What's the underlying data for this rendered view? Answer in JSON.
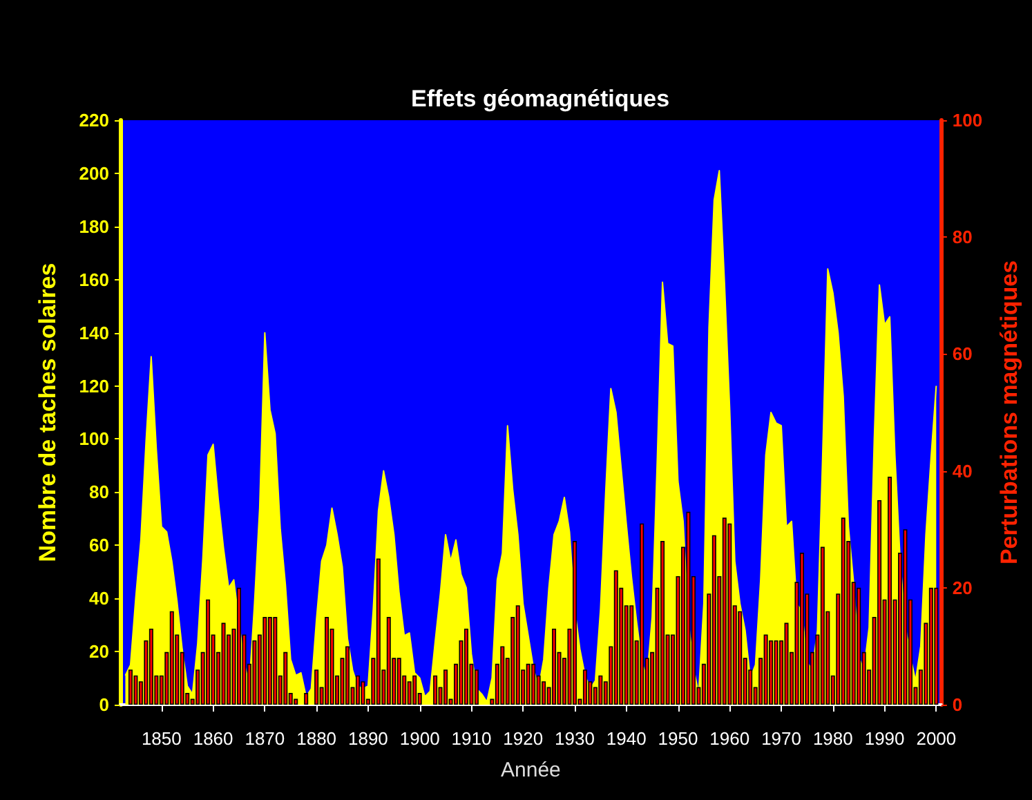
{
  "chart_data": {
    "type": "area",
    "title": "Effets géomagnétiques",
    "xlabel": "Année",
    "ylabel": "Nombre de taches solaires",
    "y2label": "Perturbations magnétiques",
    "xlim": [
      1842,
      2001
    ],
    "xticks": [
      1850,
      1860,
      1870,
      1880,
      1890,
      1900,
      1910,
      1920,
      1930,
      1940,
      1950,
      1960,
      1970,
      1980,
      1990,
      2000
    ],
    "ylim": [
      0,
      220
    ],
    "yticks": [
      0,
      20,
      40,
      60,
      80,
      100,
      120,
      140,
      160,
      180,
      200,
      220
    ],
    "y2lim": [
      0,
      100
    ],
    "y2ticks": [
      0,
      20,
      40,
      60,
      80,
      100
    ],
    "series": [
      {
        "color": "#ffff00",
        "x": [
          1843,
          1844,
          1845,
          1846,
          1847,
          1848,
          1849,
          1850,
          1851,
          1852,
          1853,
          1854,
          1855,
          1856,
          1857,
          1858,
          1859,
          1860,
          1861,
          1862,
          1863,
          1864,
          1865,
          1866,
          1867,
          1868,
          1869,
          1870,
          1871,
          1872,
          1873,
          1874,
          1875,
          1876,
          1877,
          1878,
          1879,
          1880,
          1881,
          1882,
          1883,
          1884,
          1885,
          1886,
          1887,
          1888,
          1889,
          1890,
          1891,
          1892,
          1893,
          1894,
          1895,
          1896,
          1897,
          1898,
          1899,
          1900,
          1901,
          1902,
          1903,
          1904,
          1905,
          1906,
          1907,
          1908,
          1909,
          1910,
          1911,
          1912,
          1913,
          1914,
          1915,
          1916,
          1917,
          1918,
          1919,
          1920,
          1921,
          1922,
          1923,
          1924,
          1925,
          1926,
          1927,
          1928,
          1929,
          1930,
          1931,
          1932,
          1933,
          1934,
          1935,
          1936,
          1937,
          1938,
          1939,
          1940,
          1941,
          1942,
          1943,
          1944,
          1945,
          1946,
          1947,
          1948,
          1949,
          1950,
          1951,
          1952,
          1953,
          1954,
          1955,
          1956,
          1957,
          1958,
          1959,
          1960,
          1961,
          1962,
          1963,
          1964,
          1965,
          1966,
          1967,
          1968,
          1969,
          1970,
          1971,
          1972,
          1973,
          1974,
          1975,
          1976,
          1977,
          1978,
          1979,
          1980,
          1981,
          1982,
          1983,
          1984,
          1985,
          1986,
          1987,
          1988,
          1989,
          1990,
          1991,
          1992,
          1993,
          1994,
          1995,
          1996,
          1997,
          1998,
          1999,
          2000
        ],
        "values": [
          11,
          15,
          40,
          62,
          99,
          131,
          96,
          67,
          65,
          54,
          39,
          21,
          7,
          4,
          23,
          55,
          94,
          98,
          77,
          59,
          44,
          47,
          31,
          16,
          7,
          38,
          74,
          140,
          111,
          102,
          66,
          45,
          17,
          11,
          12,
          3,
          6,
          32,
          54,
          60,
          74,
          64,
          52,
          25,
          13,
          7,
          6,
          7,
          36,
          73,
          88,
          78,
          64,
          42,
          26,
          27,
          12,
          10,
          3,
          5,
          24,
          42,
          64,
          54,
          62,
          49,
          44,
          19,
          6,
          4,
          1,
          10,
          47,
          57,
          105,
          81,
          64,
          38,
          26,
          14,
          6,
          17,
          44,
          64,
          69,
          78,
          65,
          36,
          21,
          11,
          6,
          9,
          36,
          80,
          119,
          110,
          89,
          68,
          48,
          31,
          16,
          10,
          33,
          93,
          159,
          136,
          135,
          84,
          69,
          32,
          14,
          4,
          38,
          142,
          190,
          201,
          159,
          112,
          54,
          38,
          28,
          10,
          15,
          47,
          94,
          110,
          106,
          105,
          67,
          69,
          38,
          35,
          16,
          13,
          28,
          93,
          164,
          155,
          140,
          116,
          67,
          46,
          18,
          13,
          29,
          100,
          158,
          143,
          146,
          94,
          55,
          30,
          18,
          9,
          22,
          64,
          93,
          120
        ]
      },
      {
        "type": "bar",
        "axis": "y2",
        "color": "#ff0000",
        "x": [
          1844,
          1845,
          1846,
          1847,
          1848,
          1849,
          1850,
          1851,
          1852,
          1853,
          1854,
          1855,
          1856,
          1857,
          1858,
          1859,
          1860,
          1861,
          1862,
          1863,
          1864,
          1865,
          1866,
          1867,
          1868,
          1869,
          1870,
          1871,
          1872,
          1873,
          1874,
          1875,
          1876,
          1877,
          1878,
          1879,
          1880,
          1881,
          1882,
          1883,
          1884,
          1885,
          1886,
          1887,
          1888,
          1889,
          1890,
          1891,
          1892,
          1893,
          1894,
          1895,
          1896,
          1897,
          1898,
          1899,
          1900,
          1901,
          1902,
          1903,
          1904,
          1905,
          1906,
          1907,
          1908,
          1909,
          1910,
          1911,
          1912,
          1913,
          1914,
          1915,
          1916,
          1917,
          1918,
          1919,
          1920,
          1921,
          1922,
          1923,
          1924,
          1925,
          1926,
          1927,
          1928,
          1929,
          1930,
          1931,
          1932,
          1933,
          1934,
          1935,
          1936,
          1937,
          1938,
          1939,
          1940,
          1941,
          1942,
          1943,
          1944,
          1945,
          1946,
          1947,
          1948,
          1949,
          1950,
          1951,
          1952,
          1953,
          1954,
          1955,
          1956,
          1957,
          1958,
          1959,
          1960,
          1961,
          1962,
          1963,
          1964,
          1965,
          1966,
          1967,
          1968,
          1969,
          1970,
          1971,
          1972,
          1973,
          1974,
          1975,
          1976,
          1977,
          1978,
          1979,
          1980,
          1981,
          1982,
          1983,
          1984,
          1985,
          1986,
          1987,
          1988,
          1989,
          1990,
          1991,
          1992,
          1993,
          1994,
          1995,
          1996,
          1997,
          1998,
          1999,
          2000
        ],
        "values": [
          6,
          5,
          4,
          11,
          13,
          5,
          5,
          9,
          16,
          12,
          9,
          2,
          1,
          6,
          9,
          18,
          12,
          9,
          14,
          12,
          13,
          20,
          12,
          7,
          11,
          12,
          15,
          15,
          15,
          5,
          9,
          2,
          1,
          null,
          2,
          null,
          6,
          3,
          15,
          13,
          5,
          8,
          10,
          3,
          5,
          4,
          1,
          8,
          25,
          6,
          15,
          8,
          8,
          5,
          4,
          5,
          2,
          null,
          null,
          5,
          3,
          6,
          1,
          7,
          11,
          13,
          7,
          6,
          null,
          null,
          1,
          7,
          10,
          8,
          15,
          17,
          6,
          7,
          7,
          5,
          4,
          3,
          13,
          9,
          8,
          13,
          28,
          1,
          6,
          4,
          3,
          5,
          4,
          10,
          23,
          20,
          17,
          17,
          11,
          31,
          8,
          9,
          20,
          28,
          12,
          12,
          22,
          27,
          33,
          22,
          3,
          7,
          19,
          29,
          22,
          32,
          31,
          17,
          16,
          8,
          6,
          3,
          8,
          12,
          11,
          11,
          11,
          14,
          9,
          21,
          26,
          19,
          9,
          12,
          27,
          16,
          5,
          19,
          32,
          28,
          21,
          20,
          9,
          6,
          15,
          35,
          18,
          39,
          18,
          26,
          30,
          18,
          3,
          6,
          14,
          20,
          20
        ]
      }
    ]
  }
}
